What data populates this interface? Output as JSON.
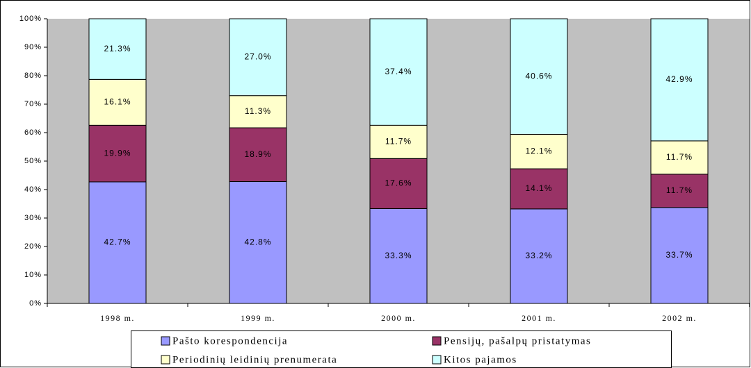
{
  "chart_data": {
    "type": "stacked_bar_100",
    "categories": [
      "1998 m.",
      "1999 m.",
      "2000 m.",
      "2001 m.",
      "2002 m."
    ],
    "series": [
      {
        "name": "Pašto korespondencija",
        "color": "#9999ff",
        "values": [
          42.7,
          42.8,
          33.3,
          33.2,
          33.7
        ],
        "value_labels": [
          "42.7%",
          "42.8%",
          "33.3%",
          "33.2%",
          "33.7%"
        ]
      },
      {
        "name": "Pensijų, pašalpų pristatymas",
        "color": "#993366",
        "values": [
          19.9,
          18.9,
          17.6,
          14.1,
          11.7
        ],
        "value_labels": [
          "19.9%",
          "18.9%",
          "17.6%",
          "14.1%",
          "11.7%"
        ]
      },
      {
        "name": "Periodinių leidinių prenumerata",
        "color": "#ffffcc",
        "values": [
          16.1,
          11.3,
          11.7,
          12.1,
          11.7
        ],
        "value_labels": [
          "16.1%",
          "11.3%",
          "11.7%",
          "12.1%",
          "11.7%"
        ]
      },
      {
        "name": "Kitos pajamos",
        "color": "#ccffff",
        "values": [
          21.3,
          27.0,
          37.4,
          40.6,
          42.9
        ],
        "value_labels": [
          "21.3%",
          "27.0%",
          "37.4%",
          "40.6%",
          "42.9%"
        ]
      }
    ],
    "ylim": [
      0,
      100
    ],
    "yticks": [
      {
        "value": 0,
        "label": "0%"
      },
      {
        "value": 10,
        "label": "10%"
      },
      {
        "value": 20,
        "label": "20%"
      },
      {
        "value": 30,
        "label": "30%"
      },
      {
        "value": 40,
        "label": "40%"
      },
      {
        "value": 50,
        "label": "50%"
      },
      {
        "value": 60,
        "label": "60%"
      },
      {
        "value": 70,
        "label": "70%"
      },
      {
        "value": 80,
        "label": "80%"
      },
      {
        "value": 90,
        "label": "90%"
      },
      {
        "value": 100,
        "label": "100%"
      }
    ],
    "legend": "bottom"
  }
}
